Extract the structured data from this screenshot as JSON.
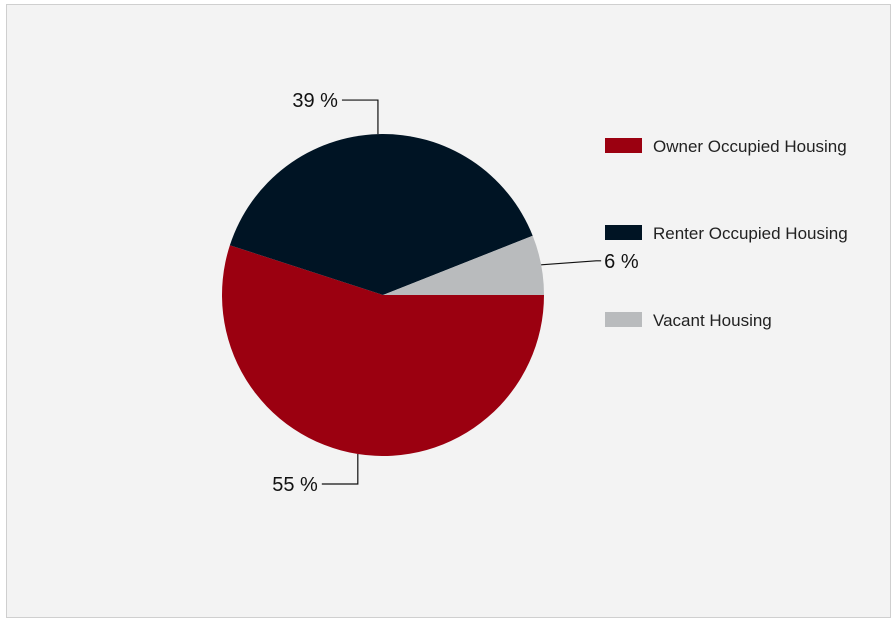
{
  "chart_data": {
    "type": "pie",
    "title": "",
    "categories": [
      "Owner Occupied Housing",
      "Renter Occupied Housing",
      "Vacant Housing"
    ],
    "values": [
      55,
      39,
      6
    ],
    "value_labels": [
      "55 %",
      "39 %",
      "6 %"
    ],
    "colors": [
      "#9b0010",
      "#001424",
      "#b9bbbd"
    ],
    "legend_position": "right",
    "grid": false
  }
}
